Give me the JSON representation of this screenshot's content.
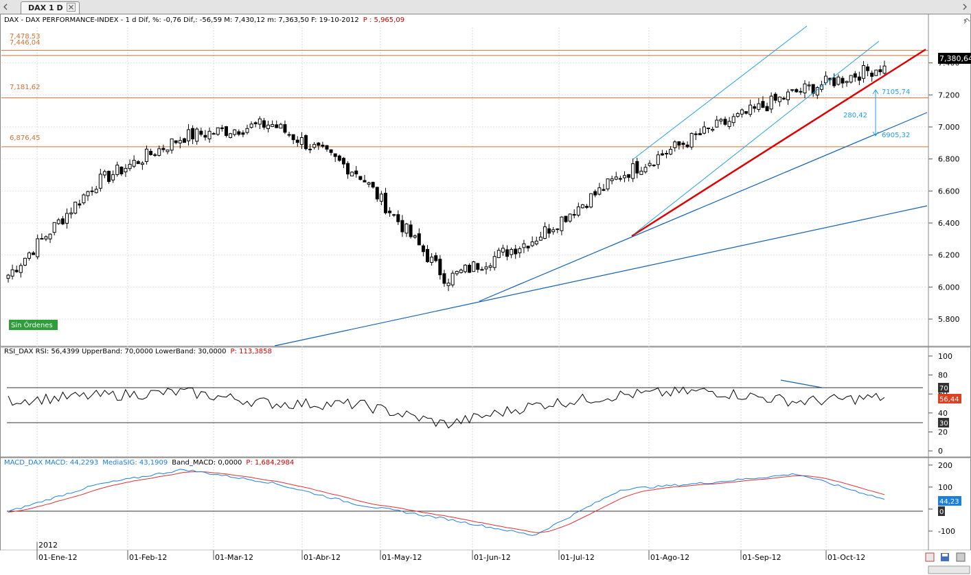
{
  "tab": {
    "label": "DAX 1 D"
  },
  "price_panel": {
    "header": {
      "series": "DAX - DAX PERFORMANCE-INDEX -  1 d Dif, %: -0,76 Dif,: -56,59 M: 7,430,12 m: 7,363,50 F: 19-10-2012",
      "p_label": "P : 5,965,09"
    },
    "hlines": [
      {
        "value": 7478.53,
        "label": "7,478,53"
      },
      {
        "value": 7446.04,
        "label": "7,446,04"
      },
      {
        "value": 7181.62,
        "label": "7,181,62"
      },
      {
        "value": 6876.45,
        "label": "6,876,45"
      }
    ],
    "annotations": {
      "upper": "7105,74",
      "lower": "6905,32",
      "diff": "280,42"
    },
    "last_price": "7,380,64",
    "badge": "Sin Órdenes"
  },
  "rsi_panel": {
    "header": {
      "series": "RSI_DAX RSI: 56,4399 UpperBand: 70,0000 LowerBand: 30,0000",
      "p_label": "P: 113,3858"
    },
    "upper_band": "70",
    "lower_band": "30",
    "last_value": "56,44"
  },
  "macd_panel": {
    "header": {
      "macd": "MACD_DAX MACD: 44,2293",
      "signal": "MediaSIG: 43,1909",
      "band": "Band_MACD: 0,0000",
      "p_label": "P: 1,684,2984"
    },
    "last_value": "44,23",
    "zero_label": "0"
  },
  "x_axis": {
    "year": "2012",
    "labels": [
      "01-Ene-12",
      "01-Feb-12",
      "01-Mar-12",
      "01-Abr-12",
      "01-May-12",
      "01-Jun-12",
      "01-Jul-12",
      "01-Ago-12",
      "01-Sep-12",
      "01-Oct-12"
    ]
  },
  "colors": {
    "grid": "#d0d0d0",
    "hline": "#d07030",
    "trend_red": "#e00000",
    "trend_blue": "#1060b0",
    "channel": "#20a0e0",
    "rsi": "#000000",
    "macd": "#1a7fe0",
    "signal": "#e03030"
  },
  "chart_data": [
    {
      "type": "candlestick",
      "title": "DAX - DAX PERFORMANCE-INDEX",
      "ylim": [
        5650,
        7600
      ],
      "yticks": [
        "5.800",
        "6.000",
        "6.200",
        "6.400",
        "6.600",
        "6.800",
        "7.000",
        "7.200",
        "7.400"
      ],
      "x": [
        "02-01-2012",
        "01-02-2012",
        "01-03-2012",
        "02-04-2012",
        "02-05-2012",
        "01-06-2012",
        "02-07-2012",
        "01-08-2012",
        "03-09-2012",
        "01-10-2012",
        "19-10-2012"
      ],
      "close": [
        6075,
        6650,
        6940,
        7020,
        6710,
        6050,
        6300,
        6700,
        6980,
        7220,
        7380.64
      ],
      "last": 7380.64
    },
    {
      "type": "line",
      "title": "RSI_DAX",
      "ylim": [
        -5,
        105
      ],
      "yticks": [
        "0",
        "20",
        "40",
        "60",
        "80",
        "100"
      ],
      "series": [
        {
          "name": "RSI",
          "values": [
            53,
            58,
            62,
            50,
            49,
            28,
            48,
            59,
            63,
            52,
            56.44
          ]
        }
      ],
      "bands": [
        70,
        30
      ]
    },
    {
      "type": "line",
      "title": "MACD_DAX",
      "ylim": [
        -175,
        215
      ],
      "yticks": [
        "-100",
        "0",
        "100",
        "200"
      ],
      "series": [
        {
          "name": "MACD",
          "values": [
            -12,
            110,
            180,
            120,
            20,
            -45,
            -120,
            90,
            120,
            160,
            44.23
          ]
        },
        {
          "name": "MediaSIG",
          "values": [
            -15,
            90,
            175,
            130,
            40,
            -50,
            -115,
            70,
            115,
            150,
            43.19
          ]
        }
      ]
    }
  ]
}
